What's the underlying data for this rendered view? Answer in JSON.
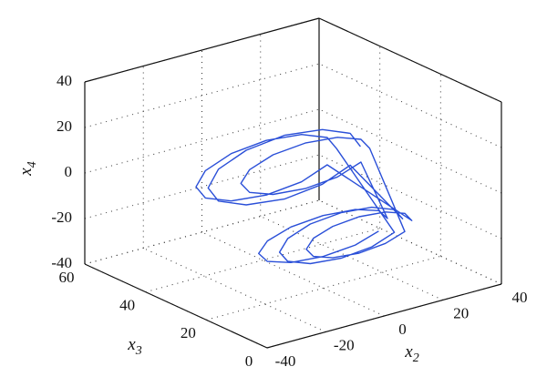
{
  "chart_data": {
    "type": "line3d",
    "xlabel": {
      "text": "x",
      "subscript": "2"
    },
    "ylabel": {
      "text": "x",
      "subscript": "3"
    },
    "zlabel": {
      "text": "x",
      "subscript": "4"
    },
    "xlim": [
      -40,
      40
    ],
    "xticks": [
      -40,
      -20,
      0,
      20,
      40
    ],
    "ylim": [
      0,
      60
    ],
    "yticks": [
      0,
      20,
      40,
      60
    ],
    "zlim": [
      -40,
      40
    ],
    "zticks": [
      -40,
      -20,
      0,
      20,
      40
    ],
    "grid": true,
    "color": "#2a4fd8",
    "x": [
      23,
      19.5,
      10,
      -3,
      -16,
      -25.5,
      -29,
      -25.5,
      -16,
      -3,
      10,
      19.5,
      27,
      24.2,
      16.5,
      6,
      -4.5,
      -12.2,
      -15,
      -12.2,
      -4.5,
      6,
      16.5,
      24.2,
      19,
      15.8,
      7,
      -5,
      -17,
      -25.8,
      -29,
      -25.8,
      -17,
      -5,
      7,
      15.8,
      26,
      23.6,
      17,
      8,
      -1,
      -7.6,
      -10,
      -7.6,
      -1,
      8,
      17,
      23.6,
      22,
      19,
      11,
      0,
      -11,
      -19,
      -22,
      -19,
      -11,
      0,
      11,
      19,
      26,
      23,
      15,
      4,
      -7,
      -15,
      -18,
      -15,
      -7,
      4,
      15,
      23
    ],
    "y": [
      30,
      30,
      30,
      30,
      30,
      30,
      30,
      30,
      30,
      30,
      30,
      30,
      20,
      20,
      20,
      20,
      20,
      20,
      20,
      20,
      20,
      20,
      20,
      20,
      34,
      34,
      34,
      34,
      34,
      34,
      34,
      34,
      34,
      34,
      34,
      34,
      16,
      16,
      16,
      16,
      16,
      16,
      16,
      16,
      16,
      16,
      16,
      16,
      26,
      26,
      26,
      26,
      26,
      26,
      26,
      26,
      26,
      26,
      26,
      26,
      24,
      24,
      24,
      24,
      24,
      24,
      24,
      24,
      24,
      24,
      24,
      24
    ],
    "z": [
      8,
      15,
      20,
      22,
      20,
      15,
      8,
      1,
      -4,
      -6,
      -4,
      1,
      -19,
      -14,
      -10.3,
      -9,
      -10.3,
      -14,
      -19,
      -24,
      -27.7,
      -29,
      -27.7,
      -24,
      6,
      12,
      16.4,
      18,
      16.4,
      12,
      6,
      0,
      -4.4,
      -6,
      -4.4,
      0,
      -17,
      -13,
      -10.1,
      -9,
      -10.1,
      -13,
      -17,
      -21,
      -23.9,
      -25,
      -23.9,
      -21,
      10,
      15,
      18.7,
      20,
      18.7,
      15,
      10,
      5,
      1.3,
      0,
      1.3,
      5,
      -21,
      -16.5,
      -13.2,
      -12,
      -13.2,
      -16.5,
      -21,
      -25.5,
      -28.8,
      -30,
      -28.8,
      -25.5
    ]
  }
}
